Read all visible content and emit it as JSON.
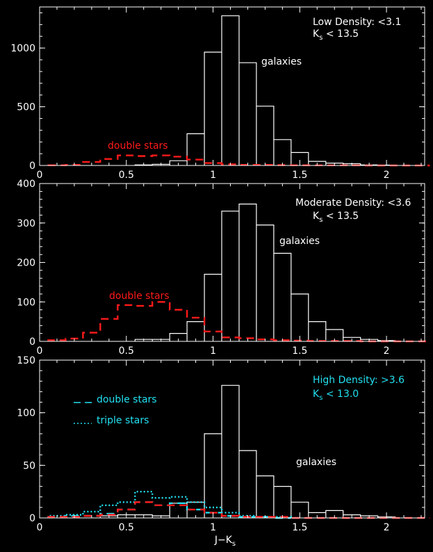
{
  "colors": {
    "background": "#000000",
    "axes": "#ffffff",
    "galaxies": "#ffffff",
    "double_stars_red": "#ff1a1a",
    "cyan": "#22e0f0"
  },
  "chart_data": [
    {
      "type": "histogram",
      "panel": "top",
      "annotation_lines": [
        "Low Density: <3.1"
      ],
      "ks_limit": {
        "symbol": "K",
        "subscript": "s",
        "text": " < 13.5"
      },
      "annotation_color": "#ffffff",
      "xlim": [
        0,
        2.22
      ],
      "ylim": [
        0,
        1350
      ],
      "xticks": [
        0,
        0.5,
        1,
        1.5,
        2
      ],
      "xtick_labels": [
        "0",
        "0.5",
        "1",
        "1.5",
        "2"
      ],
      "yticks": [
        0,
        500,
        1000
      ],
      "ytick_labels": [
        "0",
        "500",
        "1000"
      ],
      "bin_width": 0.1,
      "series": [
        {
          "name": "galaxies",
          "style": "solid",
          "color": "#ffffff",
          "bin_starts": [
            0.55,
            0.65,
            0.75,
            0.85,
            0.95,
            1.05,
            1.15,
            1.25,
            1.35,
            1.45,
            1.55,
            1.65,
            1.75,
            1.85,
            1.95
          ],
          "values": [
            5,
            10,
            40,
            270,
            965,
            1275,
            875,
            505,
            220,
            110,
            35,
            20,
            15,
            5,
            3
          ]
        },
        {
          "name": "double stars",
          "style": "dashed",
          "color": "#ff1a1a",
          "bin_starts": [
            0.05,
            0.15,
            0.25,
            0.35,
            0.45,
            0.55,
            0.65,
            0.75,
            0.85,
            0.95,
            1.05,
            1.15,
            1.25,
            1.35,
            1.45,
            1.55,
            1.65,
            1.75,
            1.85,
            1.95,
            2.05,
            2.15
          ],
          "values": [
            2,
            5,
            30,
            55,
            85,
            80,
            85,
            75,
            50,
            20,
            10,
            5,
            5,
            3,
            2,
            1,
            1,
            1,
            0,
            0,
            0,
            0
          ]
        }
      ],
      "labels": [
        "galaxies",
        "double stars"
      ]
    },
    {
      "type": "histogram",
      "panel": "middle",
      "annotation_lines": [
        "Moderate Density: <3.6"
      ],
      "ks_limit": {
        "symbol": "K",
        "subscript": "s",
        "text": " < 13.5"
      },
      "annotation_color": "#ffffff",
      "xlim": [
        0,
        2.22
      ],
      "ylim": [
        0,
        400
      ],
      "xticks": [
        0,
        0.5,
        1,
        1.5,
        2
      ],
      "xtick_labels": [
        "0",
        "0.5",
        "1",
        "1.5",
        "2"
      ],
      "yticks": [
        0,
        100,
        200,
        300,
        400
      ],
      "ytick_labels": [
        "0",
        "100",
        "200",
        "300",
        "400"
      ],
      "bin_width": 0.1,
      "series": [
        {
          "name": "galaxies",
          "style": "solid",
          "color": "#ffffff",
          "bin_starts": [
            0.55,
            0.65,
            0.75,
            0.85,
            0.95,
            1.05,
            1.15,
            1.25,
            1.35,
            1.45,
            1.55,
            1.65,
            1.75,
            1.85,
            1.95
          ],
          "values": [
            5,
            5,
            20,
            50,
            170,
            330,
            348,
            295,
            223,
            120,
            50,
            30,
            10,
            5,
            2
          ]
        },
        {
          "name": "double stars",
          "style": "dashed",
          "color": "#ff1a1a",
          "bin_starts": [
            0.05,
            0.15,
            0.25,
            0.35,
            0.45,
            0.55,
            0.65,
            0.75,
            0.85,
            0.95,
            1.05,
            1.15,
            1.25,
            1.35,
            1.45,
            1.55,
            1.65,
            1.75,
            1.85,
            1.95,
            2.05,
            2.15
          ],
          "values": [
            3,
            7,
            22,
            57,
            92,
            90,
            100,
            80,
            60,
            25,
            10,
            8,
            5,
            3,
            2,
            1,
            1,
            1,
            0,
            0,
            0,
            0
          ]
        }
      ],
      "labels": [
        "galaxies",
        "double stars"
      ]
    },
    {
      "type": "histogram",
      "panel": "bottom",
      "annotation_lines": [
        "High Density: >3.6"
      ],
      "ks_limit": {
        "symbol": "K",
        "subscript": "s",
        "text": " < 13.0"
      },
      "annotation_color": "#22e0f0",
      "xlim": [
        0,
        2.22
      ],
      "ylim": [
        0,
        150
      ],
      "xticks": [
        0,
        0.5,
        1,
        1.5,
        2
      ],
      "xtick_labels": [
        "0",
        "0.5",
        "1",
        "1.5",
        "2"
      ],
      "yticks": [
        0,
        50,
        100,
        150
      ],
      "ytick_labels": [
        "0",
        "50",
        "100",
        "150"
      ],
      "bin_width": 0.1,
      "xlabel": {
        "text": "J−K",
        "subscript": "s"
      },
      "series": [
        {
          "name": "galaxies",
          "style": "solid",
          "color": "#ffffff",
          "bin_starts": [
            0.35,
            0.45,
            0.55,
            0.65,
            0.75,
            0.85,
            0.95,
            1.05,
            1.15,
            1.25,
            1.35,
            1.45,
            1.55,
            1.65,
            1.75,
            1.85,
            1.95
          ],
          "values": [
            2,
            3,
            3,
            2,
            14,
            15,
            80,
            126,
            64,
            40,
            30,
            15,
            5,
            7,
            3,
            2,
            1
          ]
        },
        {
          "name": "double stars",
          "style": "dashed",
          "color": "#22e0f0",
          "bin_starts": [
            0.05,
            0.15,
            0.25,
            0.35,
            0.45,
            0.55,
            0.65,
            0.75,
            0.85,
            0.95,
            1.05,
            1.15,
            1.25,
            1.35
          ],
          "values": [
            1,
            2,
            2,
            4,
            8,
            15,
            12,
            14,
            8,
            5,
            2,
            1,
            1,
            0
          ]
        },
        {
          "name": "triple stars",
          "style": "dotted",
          "color": "#22e0f0",
          "bin_starts": [
            0.05,
            0.15,
            0.25,
            0.35,
            0.45,
            0.55,
            0.65,
            0.75,
            0.85,
            0.95,
            1.05,
            1.15,
            1.25,
            1.35
          ],
          "values": [
            2,
            3,
            6,
            12,
            15,
            25,
            19,
            20,
            15,
            10,
            5,
            2,
            1,
            1
          ]
        },
        {
          "name": "red dashed",
          "style": "dashed",
          "color": "#ff1a1a",
          "bin_starts": [
            0.05,
            0.15,
            0.25,
            0.35,
            0.45,
            0.55,
            0.65,
            0.75,
            0.85,
            0.95,
            1.05,
            1.15,
            1.25,
            1.35,
            1.45,
            1.55,
            1.65,
            1.75,
            1.85,
            1.95,
            2.05,
            2.15
          ],
          "values": [
            1,
            1,
            2,
            3,
            8,
            15,
            12,
            12,
            8,
            5,
            2,
            1,
            1,
            1,
            0,
            0,
            0,
            0,
            0,
            0,
            0,
            0
          ]
        }
      ],
      "labels": [
        "galaxies"
      ],
      "legend": [
        {
          "style": "dashed",
          "label": "double stars"
        },
        {
          "style": "dotted",
          "label": "triple stars"
        }
      ]
    }
  ]
}
